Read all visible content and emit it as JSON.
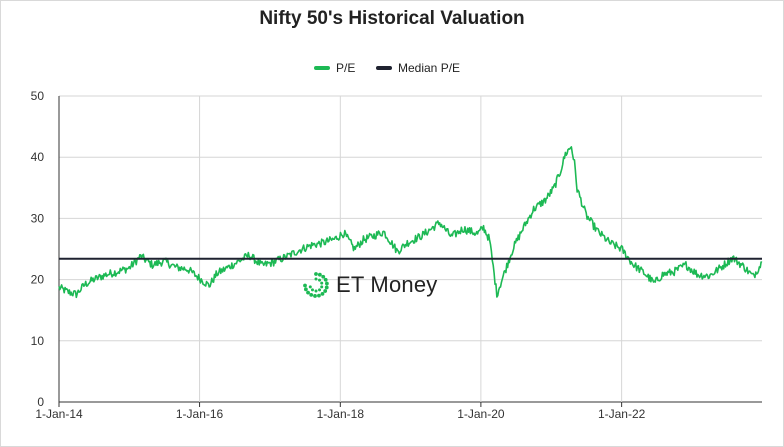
{
  "chart_data": {
    "type": "line",
    "title": "Nifty 50's Historical Valuation",
    "xlabel": "",
    "ylabel": "",
    "ylim": [
      0,
      50
    ],
    "yticks": [
      0,
      10,
      20,
      30,
      40,
      50
    ],
    "xlim": [
      "2014-01-01",
      "2023-12-31"
    ],
    "xticks": [
      {
        "date": "2014-01-01",
        "label": "1-Jan-14"
      },
      {
        "date": "2016-01-01",
        "label": "1-Jan-16"
      },
      {
        "date": "2018-01-01",
        "label": "1-Jan-18"
      },
      {
        "date": "2020-01-01",
        "label": "1-Jan-20"
      },
      {
        "date": "2022-01-01",
        "label": "1-Jan-22"
      }
    ],
    "grid": true,
    "legend_position": "top",
    "series": [
      {
        "name": "P/E",
        "color": "#1db954",
        "points": [
          [
            "2014-01-01",
            18.7
          ],
          [
            "2014-02-15",
            18.0
          ],
          [
            "2014-04-01",
            17.6
          ],
          [
            "2014-05-15",
            19.2
          ],
          [
            "2014-07-01",
            20.0
          ],
          [
            "2014-09-01",
            20.8
          ],
          [
            "2014-11-01",
            21.3
          ],
          [
            "2015-01-01",
            21.9
          ],
          [
            "2015-03-01",
            23.8
          ],
          [
            "2015-05-01",
            22.4
          ],
          [
            "2015-07-01",
            23.0
          ],
          [
            "2015-09-01",
            22.0
          ],
          [
            "2015-11-01",
            21.7
          ],
          [
            "2016-01-01",
            20.2
          ],
          [
            "2016-02-20",
            19.0
          ],
          [
            "2016-04-01",
            21.0
          ],
          [
            "2016-07-01",
            22.6
          ],
          [
            "2016-09-15",
            24.0
          ],
          [
            "2016-11-20",
            22.3
          ],
          [
            "2017-01-15",
            22.8
          ],
          [
            "2017-04-01",
            23.8
          ],
          [
            "2017-06-01",
            24.8
          ],
          [
            "2017-08-01",
            25.6
          ],
          [
            "2017-10-01",
            26.0
          ],
          [
            "2017-12-01",
            26.6
          ],
          [
            "2018-01-20",
            27.6
          ],
          [
            "2018-03-15",
            25.0
          ],
          [
            "2018-05-01",
            26.5
          ],
          [
            "2018-08-15",
            27.8
          ],
          [
            "2018-10-25",
            24.6
          ],
          [
            "2018-12-15",
            26.0
          ],
          [
            "2019-03-01",
            27.2
          ],
          [
            "2019-06-01",
            29.3
          ],
          [
            "2019-08-01",
            27.0
          ],
          [
            "2019-10-01",
            28.3
          ],
          [
            "2019-12-15",
            27.5
          ],
          [
            "2020-01-15",
            28.5
          ],
          [
            "2020-02-15",
            26.5
          ],
          [
            "2020-03-24",
            17.6
          ],
          [
            "2020-05-01",
            21.0
          ],
          [
            "2020-06-15",
            25.0
          ],
          [
            "2020-08-01",
            28.0
          ],
          [
            "2020-10-01",
            31.5
          ],
          [
            "2020-12-01",
            33.0
          ],
          [
            "2021-01-15",
            35.0
          ],
          [
            "2021-02-15",
            37.5
          ],
          [
            "2021-03-15",
            40.5
          ],
          [
            "2021-04-15",
            41.8
          ],
          [
            "2021-05-01",
            39.0
          ],
          [
            "2021-05-15",
            34.8
          ],
          [
            "2021-07-01",
            30.5
          ],
          [
            "2021-09-01",
            27.8
          ],
          [
            "2021-11-01",
            26.0
          ],
          [
            "2022-01-01",
            25.0
          ],
          [
            "2022-03-01",
            22.5
          ],
          [
            "2022-05-01",
            21.0
          ],
          [
            "2022-06-20",
            19.4
          ],
          [
            "2022-08-01",
            20.8
          ],
          [
            "2022-10-01",
            21.3
          ],
          [
            "2022-12-01",
            22.4
          ],
          [
            "2023-02-01",
            20.8
          ],
          [
            "2023-04-01",
            20.6
          ],
          [
            "2023-06-01",
            22.0
          ],
          [
            "2023-08-01",
            23.6
          ],
          [
            "2023-10-01",
            22.0
          ],
          [
            "2023-11-15",
            20.5
          ],
          [
            "2023-12-31",
            22.8
          ]
        ]
      },
      {
        "name": "Median P/E",
        "color": "#1f2230",
        "value": 23.4
      }
    ]
  },
  "watermark": {
    "text": "ET Money",
    "color": "#1db954"
  }
}
